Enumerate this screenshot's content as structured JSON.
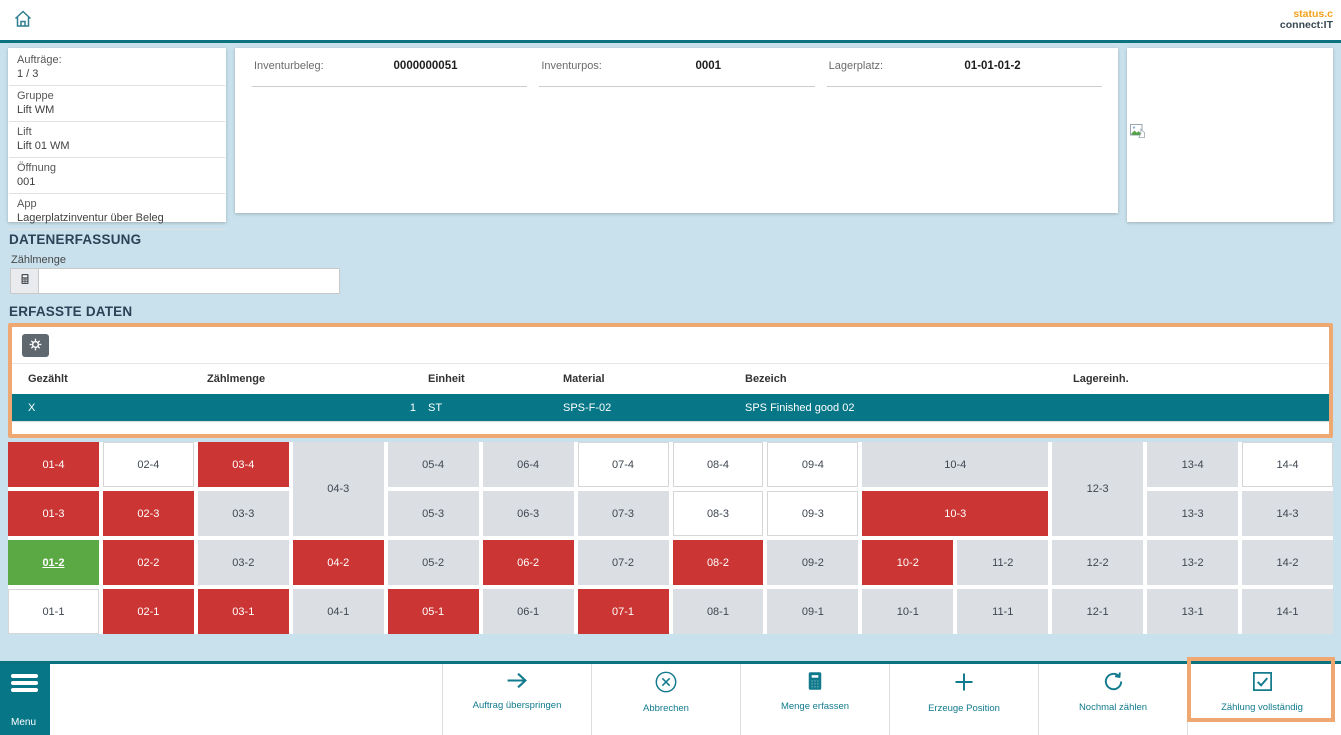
{
  "header": {
    "home_icon": "home-icon",
    "logo_line1": "status.c",
    "logo_line2": "connect:IT"
  },
  "order_panel": {
    "fields": [
      {
        "label": "Aufträge:",
        "value": "1 / 3"
      },
      {
        "label": "Gruppe",
        "value": "Lift WM"
      },
      {
        "label": "Lift",
        "value": "Lift 01 WM"
      },
      {
        "label": "Öffnung",
        "value": "001"
      },
      {
        "label": "App",
        "value": "Lagerplatzinventur über Beleg"
      }
    ]
  },
  "document_panel": {
    "fields": [
      {
        "label": "Inventurbeleg:",
        "value": "0000000051"
      },
      {
        "label": "Inventurpos:",
        "value": "0001"
      },
      {
        "label": "Lagerplatz:",
        "value": "01-01-01-2"
      }
    ]
  },
  "image_panel": {
    "icon": "broken-image-icon"
  },
  "data_entry": {
    "title": "DATENERFASSUNG",
    "field_label": "Zählmenge",
    "input_value": "",
    "input_icon": "calculator-icon"
  },
  "captured_data": {
    "title": "ERFASSTE DATEN",
    "settings_icon": "gear-icon",
    "columns": [
      "Gezählt",
      "Zählmenge",
      "Einheit",
      "Material",
      "Bezeich",
      "Lagereinh."
    ],
    "rows": [
      [
        "X",
        "1",
        "ST",
        "SPS-F-02",
        "SPS Finished good 02",
        ""
      ]
    ],
    "selected_row_index": 0
  },
  "location_grid": {
    "rows": [
      [
        {
          "label": "01-4",
          "state": "red"
        },
        {
          "label": "02-4",
          "state": "white"
        },
        {
          "label": "03-4",
          "state": "red"
        },
        {
          "label": "04-3",
          "state": "gray",
          "rowspan": 2
        },
        {
          "label": "05-4",
          "state": "gray"
        },
        {
          "label": "06-4",
          "state": "gray"
        },
        {
          "label": "07-4",
          "state": "white"
        },
        {
          "label": "08-4",
          "state": "white"
        },
        {
          "label": "09-4",
          "state": "white"
        },
        {
          "label": "10-4",
          "state": "gray",
          "colspan": 2
        },
        {
          "label": "12-3",
          "state": "gray",
          "rowspan": 2
        },
        {
          "label": "13-4",
          "state": "gray"
        },
        {
          "label": "14-4",
          "state": "white"
        }
      ],
      [
        {
          "label": "01-3",
          "state": "red"
        },
        {
          "label": "02-3",
          "state": "red"
        },
        {
          "label": "03-3",
          "state": "gray"
        },
        {
          "label": "05-3",
          "state": "gray"
        },
        {
          "label": "06-3",
          "state": "gray"
        },
        {
          "label": "07-3",
          "state": "gray"
        },
        {
          "label": "08-3",
          "state": "white"
        },
        {
          "label": "09-3",
          "state": "white"
        },
        {
          "label": "10-3",
          "state": "red",
          "colspan": 2
        },
        {
          "label": "13-3",
          "state": "gray"
        },
        {
          "label": "14-3",
          "state": "gray"
        }
      ],
      [
        {
          "label": "01-2",
          "state": "green",
          "current": true
        },
        {
          "label": "02-2",
          "state": "red"
        },
        {
          "label": "03-2",
          "state": "gray"
        },
        {
          "label": "04-2",
          "state": "red"
        },
        {
          "label": "05-2",
          "state": "gray"
        },
        {
          "label": "06-2",
          "state": "red"
        },
        {
          "label": "07-2",
          "state": "gray"
        },
        {
          "label": "08-2",
          "state": "red"
        },
        {
          "label": "09-2",
          "state": "gray"
        },
        {
          "label": "10-2",
          "state": "red"
        },
        {
          "label": "11-2",
          "state": "gray"
        },
        {
          "label": "12-2",
          "state": "gray"
        },
        {
          "label": "13-2",
          "state": "gray"
        },
        {
          "label": "14-2",
          "state": "gray"
        }
      ],
      [
        {
          "label": "01-1",
          "state": "white"
        },
        {
          "label": "02-1",
          "state": "red"
        },
        {
          "label": "03-1",
          "state": "red"
        },
        {
          "label": "04-1",
          "state": "gray"
        },
        {
          "label": "05-1",
          "state": "red"
        },
        {
          "label": "06-1",
          "state": "gray"
        },
        {
          "label": "07-1",
          "state": "red"
        },
        {
          "label": "08-1",
          "state": "gray"
        },
        {
          "label": "09-1",
          "state": "gray"
        },
        {
          "label": "10-1",
          "state": "gray"
        },
        {
          "label": "11-1",
          "state": "gray"
        },
        {
          "label": "12-1",
          "state": "gray"
        },
        {
          "label": "13-1",
          "state": "gray"
        },
        {
          "label": "14-1",
          "state": "gray"
        }
      ]
    ]
  },
  "toolbar": {
    "menu_label": "Menu",
    "buttons": [
      {
        "label": "Auftrag überspringen",
        "icon": "arrow-right-icon"
      },
      {
        "label": "Abbrechen",
        "icon": "cancel-circle-icon"
      },
      {
        "label": "Menge erfassen",
        "icon": "calculator-icon"
      },
      {
        "label": "Erzeuge Position",
        "icon": "plus-icon"
      },
      {
        "label": "Nochmal zählen",
        "icon": "refresh-icon"
      },
      {
        "label": "Zählung vollständig",
        "icon": "checkbox-checked-icon",
        "highlighted": true
      }
    ]
  },
  "colors": {
    "accent_teal": "#077787",
    "border_teal": "#0c7280",
    "cell_red": "#cb3634",
    "cell_gray": "#dbdfe4",
    "cell_green": "#5aa945",
    "highlight_orange": "#f0a873",
    "logo_orange": "#f5a11c",
    "heading_navy": "#2b4257",
    "page_background": "#c9e1ec"
  }
}
